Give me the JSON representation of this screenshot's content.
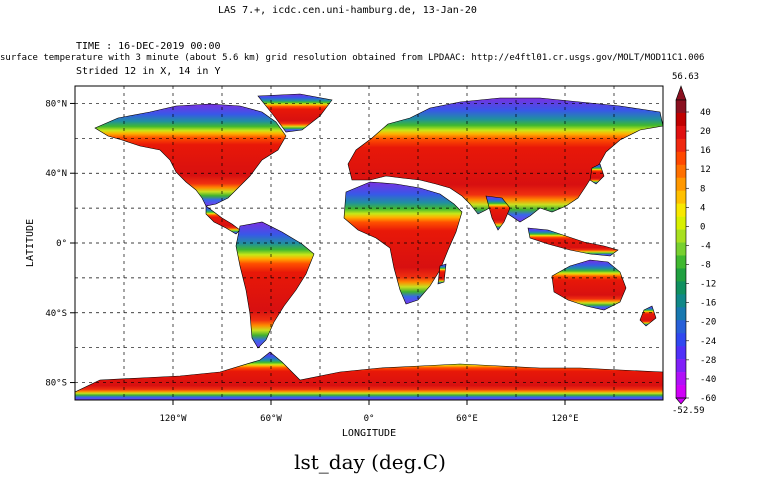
{
  "header": {
    "app_line": "LAS 7.+, icdc.cen.uni-hamburg.de, 13-Jan-20",
    "time_line": "TIME : 16-DEC-2019 00:00",
    "dataset_line": "surface temperature with 3 minute (about 5.6 km) grid resolution obtained from LPDAAC: http://e4ftl01.cr.usgs.gov/MOLT/MOD11C1.006",
    "stride_line": "Strided 12 in X, 14 in Y"
  },
  "map": {
    "x_axis_title": "LONGITUDE",
    "y_axis_title": "LATITUDE",
    "lon_ticks": [
      {
        "label": "120°W",
        "lon": -120
      },
      {
        "label": "60°W",
        "lon": -60
      },
      {
        "label": "0°",
        "lon": 0
      },
      {
        "label": "60°E",
        "lon": 60
      },
      {
        "label": "120°E",
        "lon": 120
      }
    ],
    "lat_ticks": [
      {
        "label": "80°N",
        "lat": 80
      },
      {
        "label": "40°N",
        "lat": 40
      },
      {
        "label": "0°",
        "lat": 0
      },
      {
        "label": "40°S",
        "lat": -40
      },
      {
        "label": "80°S",
        "lat": -80
      }
    ],
    "lon_range": [
      -180,
      180
    ],
    "lat_range": [
      -90,
      90
    ],
    "grid": true,
    "ocean_color": "#ffffff"
  },
  "colorbar": {
    "max_label": "56.63",
    "min_label": "-52.59",
    "levels": [
      40,
      36,
      32,
      28,
      24,
      20,
      16,
      12,
      8,
      4,
      0,
      -4,
      -8,
      -12,
      -16,
      -20,
      -24,
      -28,
      -32,
      -36,
      -40
    ],
    "tick_labels": [
      "40",
      "20",
      "16",
      "12",
      "8",
      "4",
      "0",
      "-4",
      "-8",
      "-12",
      "-16",
      "-20",
      "-24",
      "-28",
      "-40",
      "-60"
    ],
    "colors": [
      "#8a1020",
      "#c00000",
      "#e01010",
      "#f02810",
      "#ff4800",
      "#ff7000",
      "#ff9800",
      "#ffc000",
      "#f8e800",
      "#d8f000",
      "#a8e020",
      "#78d030",
      "#40b830",
      "#20a040",
      "#109060",
      "#108888",
      "#1878b0",
      "#2860d8",
      "#3048f0",
      "#5030f8",
      "#8020f8",
      "#b010f8",
      "#d000f8"
    ]
  },
  "variable_title": "lst_day (deg.C)"
}
